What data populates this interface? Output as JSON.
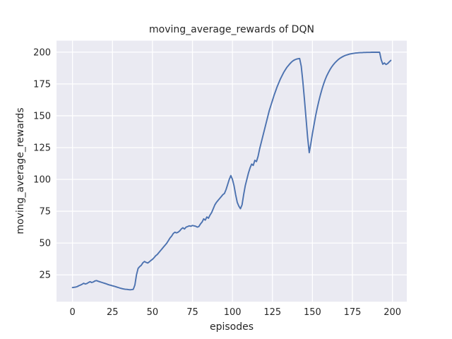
{
  "chart_data": {
    "type": "line",
    "title": "moving_average_rewards of DQN",
    "xlabel": "episodes",
    "ylabel": "moving_average_rewards",
    "xlim": [
      -10,
      209
    ],
    "ylim": [
      3.9,
      209
    ],
    "xticks": [
      0,
      25,
      50,
      75,
      100,
      125,
      150,
      175,
      200
    ],
    "yticks": [
      25,
      50,
      75,
      100,
      125,
      150,
      175,
      200
    ],
    "grid": true,
    "legend": "none",
    "colors": {
      "figure_bg": "#ffffff",
      "plot_bg": "#eaeaf2",
      "grid": "#ffffff",
      "line": "#4c72b0",
      "text": "#262626"
    },
    "series": [
      {
        "name": "moving_average_rewards",
        "x_start": 0,
        "x_step": 1,
        "values": [
          15.0,
          15.2,
          15.4,
          15.8,
          16.5,
          17.0,
          17.6,
          18.4,
          17.8,
          18.2,
          19.0,
          19.6,
          19.0,
          19.4,
          20.2,
          20.5,
          20.0,
          19.6,
          19.2,
          18.8,
          18.4,
          18.0,
          17.5,
          17.1,
          16.8,
          16.4,
          16.1,
          15.7,
          15.3,
          14.9,
          14.5,
          14.2,
          13.9,
          13.7,
          13.6,
          13.4,
          13.3,
          13.4,
          13.6,
          17.0,
          25.0,
          30.0,
          31.5,
          32.5,
          34.5,
          35.5,
          34.8,
          34.3,
          35.2,
          36.3,
          37.2,
          38.5,
          40.0,
          41.0,
          42.5,
          44.0,
          45.5,
          47.0,
          48.5,
          50.0,
          52.0,
          54.0,
          55.5,
          57.5,
          58.5,
          58.0,
          58.5,
          59.5,
          61.0,
          62.0,
          61.0,
          62.5,
          63.0,
          63.5,
          63.2,
          63.8,
          63.5,
          63.2,
          62.5,
          63.0,
          65.0,
          66.5,
          69.0,
          68.0,
          70.5,
          69.5,
          72.0,
          74.0,
          77.0,
          80.0,
          82.0,
          83.5,
          85.0,
          86.5,
          88.0,
          89.0,
          92.0,
          96.0,
          100.0,
          103.0,
          100.0,
          95.0,
          88.0,
          82.0,
          79.0,
          77.0,
          80.0,
          88.0,
          95.0,
          100.0,
          105.0,
          109.0,
          112.0,
          111.0,
          115.0,
          114.0,
          118.0,
          124.0,
          129.0,
          134.0,
          139.0,
          144.0,
          149.0,
          154.0,
          158.0,
          162.0,
          166.0,
          169.5,
          173.0,
          176.0,
          179.0,
          181.5,
          184.0,
          186.0,
          188.0,
          189.5,
          191.0,
          192.3,
          193.3,
          194.0,
          194.5,
          194.8,
          195.0,
          189.0,
          177.0,
          163.0,
          148.0,
          133.0,
          121.0,
          128.0,
          136.0,
          143.0,
          150.0,
          156.0,
          161.5,
          166.5,
          171.0,
          175.0,
          178.5,
          181.5,
          184.0,
          186.3,
          188.3,
          190.0,
          191.5,
          192.8,
          194.0,
          195.0,
          195.8,
          196.5,
          197.1,
          197.6,
          198.0,
          198.4,
          198.7,
          198.9,
          199.1,
          199.3,
          199.4,
          199.5,
          199.6,
          199.6,
          199.7,
          199.7,
          199.8,
          199.8,
          199.8,
          199.9,
          199.9,
          199.9,
          199.9,
          199.9,
          199.9,
          194.0,
          190.5,
          191.5,
          190.3,
          191.0,
          192.3,
          193.5
        ]
      }
    ]
  }
}
